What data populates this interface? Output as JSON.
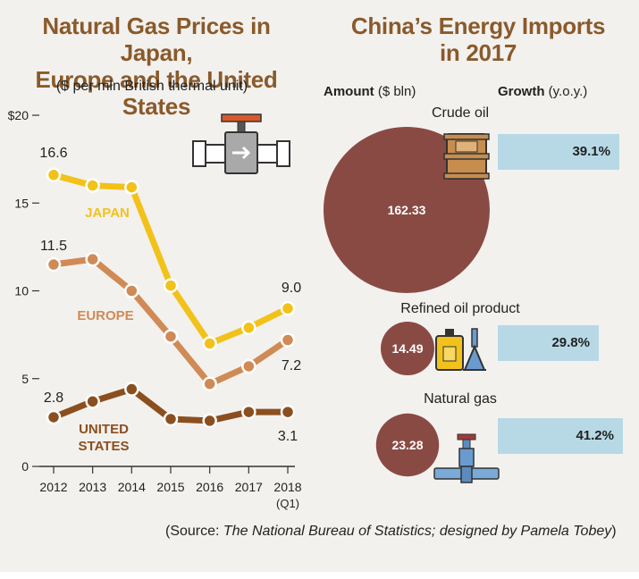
{
  "left": {
    "title_line1": "Natural Gas Prices in Japan,",
    "title_line2": "Europe and the United States",
    "subtitle": "($ per mln British thermal unit)"
  },
  "right": {
    "title_line1": "China’s Energy Imports",
    "title_line2": "in 2017",
    "amount_label_bold": "Amount",
    "amount_label_unit": "($ bln)",
    "growth_label_bold": "Growth",
    "growth_label_unit": "(y.o.y.)"
  },
  "source": {
    "prefix": "(Source: ",
    "italic": "The National Bureau of Statistics; designed by Pamela Tobey",
    "suffix": ")"
  },
  "colors": {
    "japan": "#f2c21b",
    "europe": "#d08a55",
    "us": "#8b4f1f",
    "bubble": "#8a4a44",
    "bar": "#b7d9e6",
    "title": "#8a5a2b"
  },
  "icons": [
    "valve-pipe-icon",
    "oil-barrel-icon",
    "oil-bottle-icon",
    "gas-pump-icon",
    "gas-pipe-valve-icon"
  ],
  "chart_data": [
    {
      "type": "line",
      "title": "Natural Gas Prices in Japan, Europe and the United States",
      "subtitle": "($ per mln British thermal unit)",
      "x": [
        "2012",
        "2013",
        "2014",
        "2015",
        "2016",
        "2017",
        "2018"
      ],
      "x_sublabel_last": "(Q1)",
      "y_ticks": [
        "$20",
        "15",
        "10",
        "5",
        "0"
      ],
      "y_tick_values": [
        20,
        15,
        10,
        5,
        0
      ],
      "ylim": [
        0,
        20
      ],
      "series": [
        {
          "name": "JAPAN",
          "color": "#f2c21b",
          "values": [
            16.6,
            16.0,
            15.9,
            10.3,
            7.0,
            7.9,
            9.0
          ],
          "labels": {
            "first": "16.6",
            "last": "9.0"
          }
        },
        {
          "name": "EUROPE",
          "color": "#d08a55",
          "values": [
            11.5,
            11.8,
            10.0,
            7.4,
            4.7,
            5.7,
            7.2
          ],
          "labels": {
            "first": "11.5",
            "last": "7.2"
          }
        },
        {
          "name": "UNITED STATES",
          "name_line1": "UNITED",
          "name_line2": "STATES",
          "color": "#8b4f1f",
          "values": [
            2.8,
            3.7,
            4.4,
            2.7,
            2.6,
            3.1,
            3.1
          ],
          "labels": {
            "first": "2.8",
            "last": "3.1"
          }
        }
      ]
    },
    {
      "type": "bubble",
      "title": "China’s Energy Imports in 2017",
      "amount_unit": "$ bln",
      "growth_unit": "y.o.y.",
      "categories": [
        "Crude oil",
        "Refined oil product",
        "Natural gas"
      ],
      "amount": [
        162.33,
        14.49,
        23.28
      ],
      "amount_labels": [
        "162.33",
        "14.49",
        "23.28"
      ],
      "growth_pct": [
        39.1,
        29.8,
        41.2
      ],
      "growth_labels": [
        "39.1%",
        "29.8%",
        "41.2%"
      ]
    }
  ]
}
